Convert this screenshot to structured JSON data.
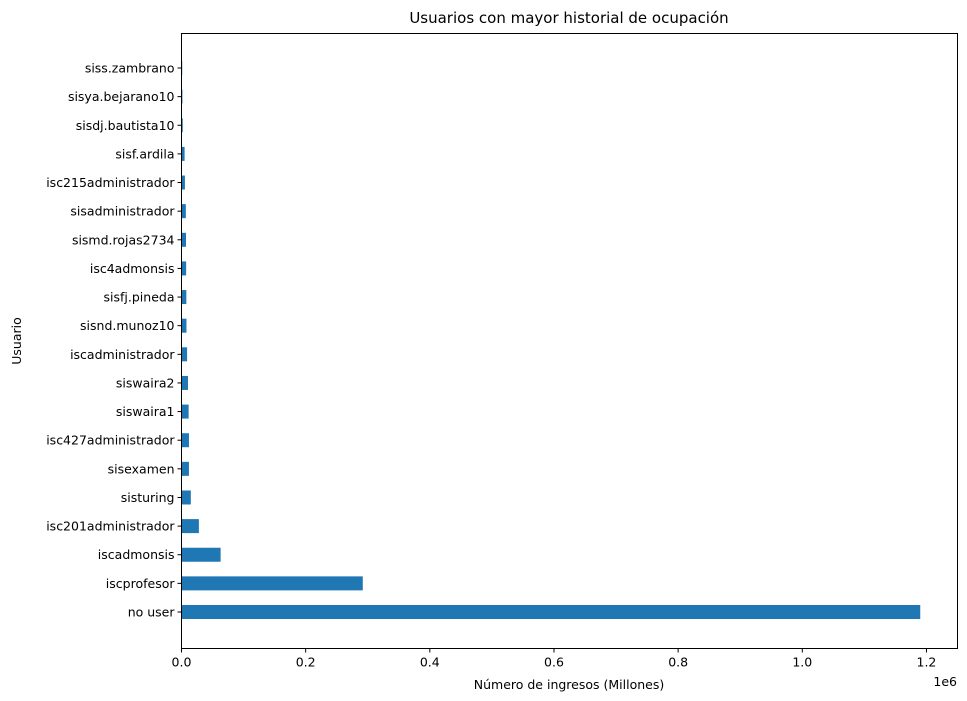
{
  "chart_data": {
    "type": "bar",
    "orientation": "horizontal",
    "title": "Usuarios con mayor historial de ocupación",
    "xlabel": "Número de ingresos (Millones)",
    "ylabel": "Usuario",
    "x_offset_text": "1e6",
    "xlim": [
      0,
      1250000
    ],
    "xticks": [
      0,
      200000,
      400000,
      600000,
      800000,
      1000000,
      1200000
    ],
    "xtick_labels": [
      "0.0",
      "0.2",
      "0.4",
      "0.6",
      "0.8",
      "1.0",
      "1.2"
    ],
    "categories": [
      "no user",
      "iscprofesor",
      "iscadmonsis",
      "isc201administrador",
      "sisturing",
      "sisexamen",
      "isc427administrador",
      "siswaira1",
      "siswaira2",
      "iscadministrador",
      "sisnd.munoz10",
      "sisfj.pineda",
      "isc4admonsis",
      "sismd.rojas2734",
      "sisadministrador",
      "isc215administrador",
      "sisf.ardila",
      "sisdj.bautista10",
      "sisya.bejarano10",
      "siss.zambrano"
    ],
    "values": [
      1190000,
      292000,
      63000,
      28000,
      15000,
      12000,
      12000,
      11500,
      10500,
      9000,
      8000,
      7800,
      7500,
      7300,
      7000,
      5500,
      5000,
      2000,
      1500,
      1200
    ],
    "bar_color": "#1f77b4",
    "grid": false,
    "legend": "none"
  }
}
